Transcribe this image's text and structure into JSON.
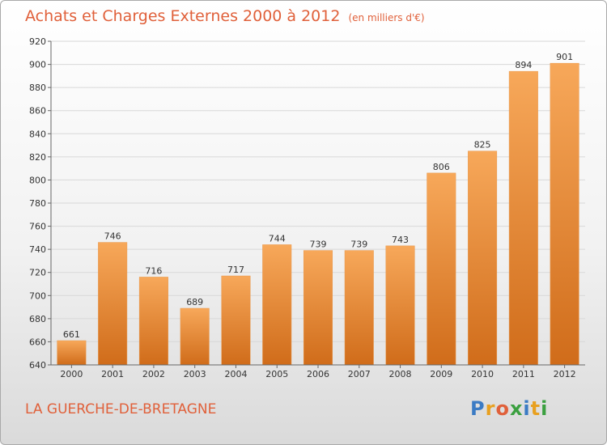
{
  "header": {
    "title": "Achats et Charges Externes 2000 à 2012",
    "unit": "(en milliers d'€)"
  },
  "footer": {
    "town": "LA GUERCHE-DE-BRETAGNE"
  },
  "logo": {
    "letters": [
      "P",
      "r",
      "o",
      "x",
      "i",
      "t",
      "i"
    ],
    "colors": [
      "#3b7bc4",
      "#e8a020",
      "#e0603a",
      "#3ba040",
      "#3b7bc4",
      "#e8a020",
      "#3ba040"
    ]
  },
  "colors": {
    "bar_top": "#f7a85a",
    "bar_bottom": "#d06c1a",
    "accent": "#e0603a"
  },
  "chart_data": {
    "type": "bar",
    "title": "Achats et Charges Externes 2000 à 2012",
    "categories": [
      "2000",
      "2001",
      "2002",
      "2003",
      "2004",
      "2005",
      "2006",
      "2007",
      "2008",
      "2009",
      "2010",
      "2011",
      "2012"
    ],
    "values": [
      661,
      746,
      716,
      689,
      717,
      744,
      739,
      739,
      743,
      806,
      825,
      894,
      901
    ],
    "ylim": [
      640,
      920
    ],
    "yticks": [
      640,
      660,
      680,
      700,
      720,
      740,
      760,
      780,
      800,
      820,
      840,
      860,
      880,
      900,
      920
    ],
    "grid": true,
    "xlabel": "",
    "ylabel": ""
  }
}
